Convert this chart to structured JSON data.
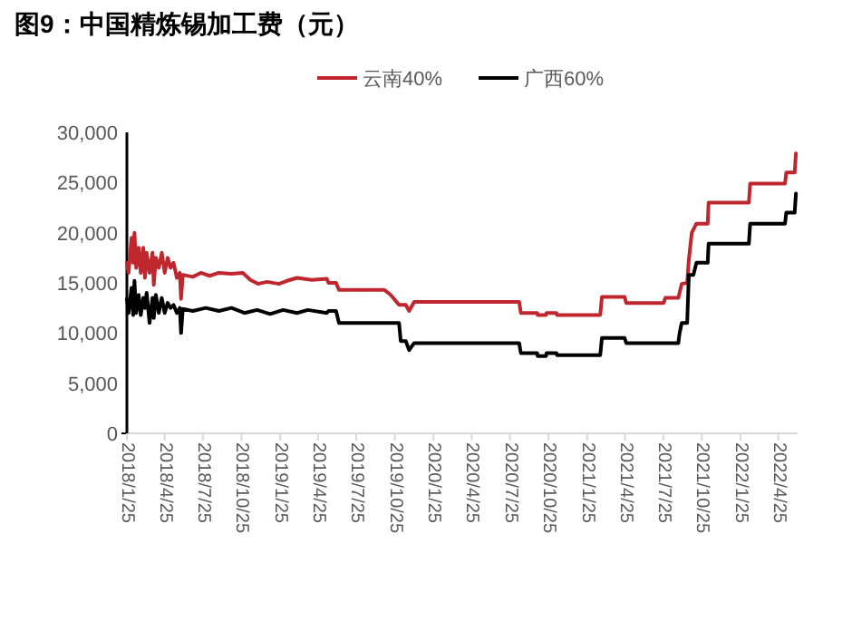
{
  "chart_data": {
    "type": "line",
    "title": "图9：中国精炼锡加工费（元）",
    "legend": "top",
    "grid": false,
    "marker": "none",
    "line_style": "solid",
    "xlim": [
      "2018-01-25",
      "2022-06-10"
    ],
    "ylim": [
      0,
      30000
    ],
    "yticks": [
      {
        "value": 0,
        "label": "0"
      },
      {
        "value": 5000,
        "label": "5,000"
      },
      {
        "value": 10000,
        "label": "10,000"
      },
      {
        "value": 15000,
        "label": "15,000"
      },
      {
        "value": 20000,
        "label": "20,000"
      },
      {
        "value": 25000,
        "label": "25,000"
      },
      {
        "value": 30000,
        "label": "30,000"
      }
    ],
    "xticks": [
      {
        "value": "2018-01-25",
        "label": "2018/1/25"
      },
      {
        "value": "2018-04-25",
        "label": "2018/4/25"
      },
      {
        "value": "2018-07-25",
        "label": "2018/7/25"
      },
      {
        "value": "2018-10-25",
        "label": "2018/10/25"
      },
      {
        "value": "2019-01-25",
        "label": "2019/1/25"
      },
      {
        "value": "2019-04-25",
        "label": "2019/4/25"
      },
      {
        "value": "2019-07-25",
        "label": "2019/7/25"
      },
      {
        "value": "2019-10-25",
        "label": "2019/10/25"
      },
      {
        "value": "2020-01-25",
        "label": "2020/1/25"
      },
      {
        "value": "2020-04-25",
        "label": "2020/4/25"
      },
      {
        "value": "2020-07-25",
        "label": "2020/7/25"
      },
      {
        "value": "2020-10-25",
        "label": "2020/10/25"
      },
      {
        "value": "2021-01-25",
        "label": "2021/1/25"
      },
      {
        "value": "2021-04-25",
        "label": "2021/4/25"
      },
      {
        "value": "2021-07-25",
        "label": "2021/7/25"
      },
      {
        "value": "2021-10-25",
        "label": "2021/10/25"
      },
      {
        "value": "2022-01-25",
        "label": "2022/1/25"
      },
      {
        "value": "2022-04-25",
        "label": "2022/4/25"
      }
    ],
    "series": [
      {
        "name": "云南40%",
        "color": "#c0262d",
        "x": [
          "2018-01-25",
          "2018-01-29",
          "2018-02-05",
          "2018-02-09",
          "2018-02-12",
          "2018-02-16",
          "2018-02-22",
          "2018-02-27",
          "2018-03-05",
          "2018-03-09",
          "2018-03-13",
          "2018-03-20",
          "2018-03-27",
          "2018-03-30",
          "2018-04-04",
          "2018-04-11",
          "2018-04-18",
          "2018-04-25",
          "2018-05-02",
          "2018-05-09",
          "2018-05-16",
          "2018-05-24",
          "2018-05-31",
          "2018-06-03",
          "2018-06-07",
          "2018-07-01",
          "2018-07-20",
          "2018-08-10",
          "2018-09-01",
          "2018-10-01",
          "2018-10-28",
          "2018-11-15",
          "2018-12-03",
          "2018-12-25",
          "2019-01-22",
          "2019-02-10",
          "2019-03-06",
          "2019-04-10",
          "2019-05-16",
          "2019-05-20",
          "2019-06-07",
          "2019-06-14",
          "2019-09-30",
          "2019-10-15",
          "2019-11-04",
          "2019-11-20",
          "2019-11-28",
          "2019-12-10",
          "2020-08-16",
          "2020-08-20",
          "2020-09-28",
          "2020-09-29",
          "2020-10-19",
          "2020-10-20",
          "2020-11-13",
          "2020-11-14",
          "2021-02-25",
          "2021-03-01",
          "2021-04-24",
          "2021-04-28",
          "2021-07-26",
          "2021-07-30",
          "2021-08-30",
          "2021-09-07",
          "2021-09-20",
          "2021-09-24",
          "2021-10-01",
          "2021-10-12",
          "2021-11-08",
          "2021-11-10",
          "2022-02-14",
          "2022-02-17",
          "2022-05-11",
          "2022-05-14",
          "2022-06-03",
          "2022-06-06"
        ],
        "values": [
          17000,
          16000,
          19500,
          17000,
          20000,
          16500,
          18500,
          16000,
          18500,
          15500,
          18000,
          16000,
          18000,
          14800,
          17500,
          16500,
          18000,
          16000,
          17500,
          16500,
          17000,
          15500,
          16000,
          13400,
          15800,
          15600,
          16000,
          15700,
          16000,
          15900,
          16000,
          15300,
          14900,
          15100,
          14900,
          15200,
          15500,
          15300,
          15400,
          15000,
          15000,
          14300,
          14300,
          13800,
          12800,
          12800,
          12200,
          13100,
          13100,
          12000,
          12000,
          11800,
          11800,
          12000,
          12000,
          11800,
          11800,
          13600,
          13600,
          13000,
          13000,
          13500,
          13500,
          14900,
          15000,
          17300,
          20000,
          20900,
          20900,
          23000,
          23000,
          24900,
          24900,
          26000,
          26000,
          27900
        ]
      },
      {
        "name": "广西60%",
        "color": "#000000",
        "x": [
          "2018-01-25",
          "2018-01-29",
          "2018-02-05",
          "2018-02-09",
          "2018-02-12",
          "2018-02-16",
          "2018-02-22",
          "2018-02-27",
          "2018-03-05",
          "2018-03-09",
          "2018-03-13",
          "2018-03-20",
          "2018-03-27",
          "2018-03-30",
          "2018-04-04",
          "2018-04-11",
          "2018-04-18",
          "2018-04-25",
          "2018-05-02",
          "2018-05-09",
          "2018-05-16",
          "2018-05-24",
          "2018-05-31",
          "2018-06-03",
          "2018-06-07",
          "2018-07-01",
          "2018-08-01",
          "2018-09-01",
          "2018-10-01",
          "2018-11-01",
          "2018-12-01",
          "2019-01-01",
          "2019-02-01",
          "2019-03-06",
          "2019-04-01",
          "2019-05-16",
          "2019-05-20",
          "2019-06-07",
          "2019-06-14",
          "2019-11-04",
          "2019-11-08",
          "2019-11-20",
          "2019-11-28",
          "2019-12-10",
          "2020-08-16",
          "2020-08-20",
          "2020-09-28",
          "2020-09-29",
          "2020-10-19",
          "2020-10-20",
          "2020-11-13",
          "2020-11-14",
          "2021-02-25",
          "2021-03-01",
          "2021-04-24",
          "2021-04-28",
          "2021-08-30",
          "2021-09-02",
          "2021-09-07",
          "2021-09-20",
          "2021-09-24",
          "2021-10-05",
          "2021-10-12",
          "2021-11-08",
          "2021-11-10",
          "2022-02-14",
          "2022-02-17",
          "2022-05-11",
          "2022-05-14",
          "2022-06-03",
          "2022-06-06"
        ],
        "values": [
          13400,
          12000,
          14500,
          11800,
          15200,
          12000,
          13800,
          11800,
          13500,
          12500,
          14000,
          11000,
          13500,
          11500,
          13800,
          12000,
          13500,
          12000,
          13000,
          12500,
          12800,
          12000,
          12500,
          10000,
          12400,
          12200,
          12500,
          12200,
          12500,
          12000,
          12300,
          11900,
          12300,
          12000,
          12300,
          12000,
          12200,
          12200,
          11000,
          11000,
          9200,
          9200,
          8300,
          9000,
          9000,
          8000,
          8000,
          7700,
          7700,
          8000,
          8000,
          7800,
          7800,
          9500,
          9500,
          9000,
          9000,
          10000,
          11000,
          11000,
          15800,
          15800,
          17000,
          17000,
          18900,
          18900,
          20900,
          20900,
          22000,
          22000,
          23900
        ]
      }
    ]
  }
}
